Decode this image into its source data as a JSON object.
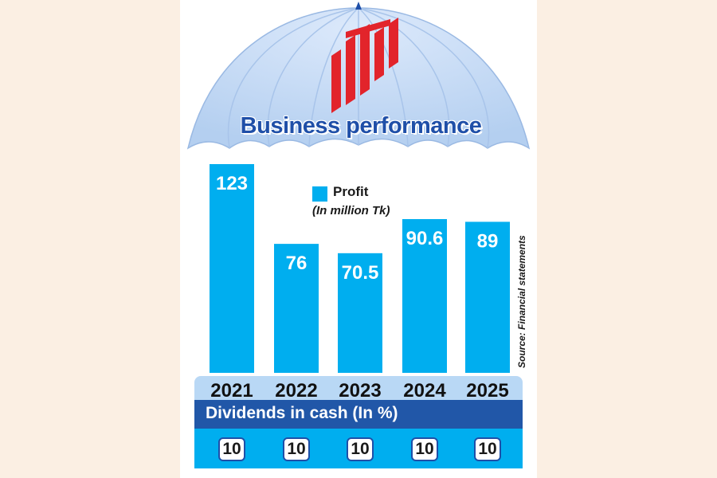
{
  "title": "Business performance",
  "legend": {
    "label": "Profit",
    "unit": "(In million Tk)"
  },
  "source": "Source: Financial statements",
  "dividends": {
    "header": "Dividends in cash (In %)",
    "values": [
      "10",
      "10",
      "10",
      "10",
      "10"
    ]
  },
  "colors": {
    "bar": "#00aeef",
    "title": "#1f4fa8",
    "header_band": "#2157a8",
    "umbrella": "#c7dcf6",
    "logo": "#e2242b"
  },
  "icons": [
    "umbrella-graphic",
    "company-logo"
  ],
  "chart_data": {
    "type": "bar",
    "title": "Business performance",
    "categories": [
      "2021",
      "2022",
      "2023",
      "2024",
      "2025"
    ],
    "series": [
      {
        "name": "Profit",
        "values": [
          123,
          76,
          70.5,
          90.6,
          89
        ]
      }
    ],
    "value_labels": [
      "123",
      "76",
      "70.5",
      "90.6",
      "89"
    ],
    "ylabel": "",
    "xlabel": "",
    "ylim": [
      0,
      123
    ],
    "grid": false,
    "legend_position": "top-center"
  }
}
